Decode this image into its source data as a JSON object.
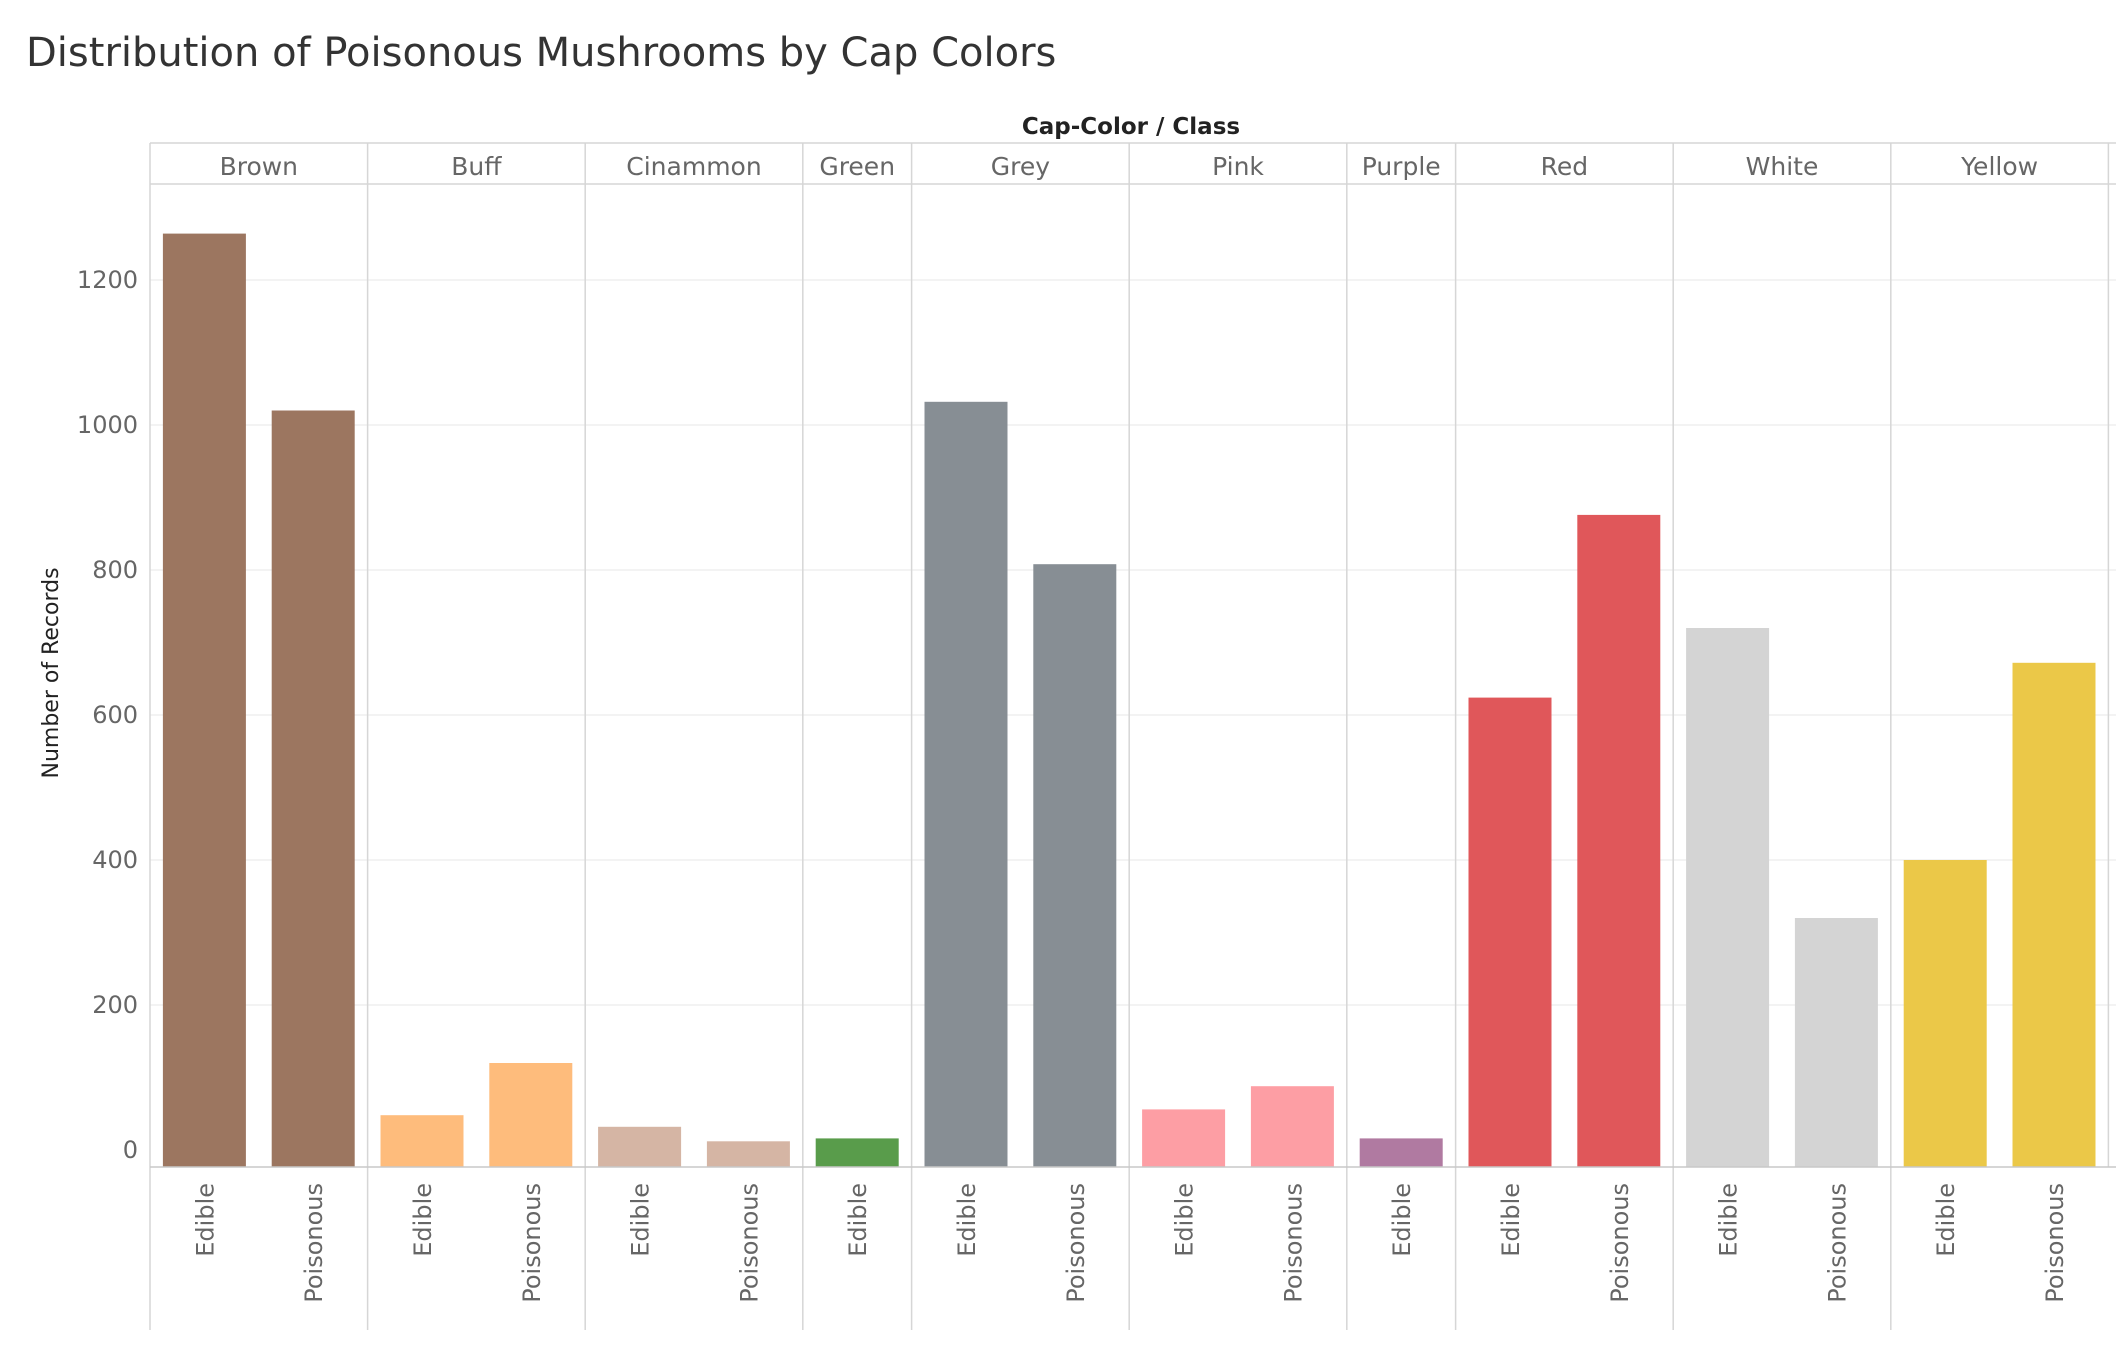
{
  "chart_data": {
    "type": "bar",
    "title": "Distribution of Poisonous Mushrooms by Cap Colors",
    "header": "Cap-Color / Class",
    "ylabel": "Number of Records",
    "ylim": [
      0,
      1300
    ],
    "yticks": [
      0,
      200,
      400,
      600,
      800,
      1000,
      1200
    ],
    "grid": true,
    "groups": [
      {
        "name": "Brown",
        "color": "#9c7660",
        "bars": [
          {
            "class": "Edible",
            "value": 1264
          },
          {
            "class": "Poisonous",
            "value": 1020
          }
        ]
      },
      {
        "name": "Buff",
        "color": "#febc7c",
        "bars": [
          {
            "class": "Edible",
            "value": 48
          },
          {
            "class": "Poisonous",
            "value": 120
          }
        ]
      },
      {
        "name": "Cinammon",
        "color": "#d5b5a4",
        "bars": [
          {
            "class": "Edible",
            "value": 32
          },
          {
            "class": "Poisonous",
            "value": 12
          }
        ]
      },
      {
        "name": "Green",
        "color": "#599c4b",
        "bars": [
          {
            "class": "Edible",
            "value": 16
          }
        ]
      },
      {
        "name": "Grey",
        "color": "#878e94",
        "bars": [
          {
            "class": "Edible",
            "value": 1032
          },
          {
            "class": "Poisonous",
            "value": 808
          }
        ]
      },
      {
        "name": "Pink",
        "color": "#fd9ea4",
        "bars": [
          {
            "class": "Edible",
            "value": 56
          },
          {
            "class": "Poisonous",
            "value": 88
          }
        ]
      },
      {
        "name": "Purple",
        "color": "#b07aa1",
        "bars": [
          {
            "class": "Edible",
            "value": 16
          }
        ]
      },
      {
        "name": "Red",
        "color": "#e0575a",
        "bars": [
          {
            "class": "Edible",
            "value": 624
          },
          {
            "class": "Poisonous",
            "value": 876
          }
        ]
      },
      {
        "name": "White",
        "color": "#d4d4d4",
        "bars": [
          {
            "class": "Edible",
            "value": 720
          },
          {
            "class": "Poisonous",
            "value": 320
          }
        ]
      },
      {
        "name": "Yellow",
        "color": "#ebc848",
        "bars": [
          {
            "class": "Edible",
            "value": 400
          },
          {
            "class": "Poisonous",
            "value": 672
          }
        ]
      }
    ]
  }
}
